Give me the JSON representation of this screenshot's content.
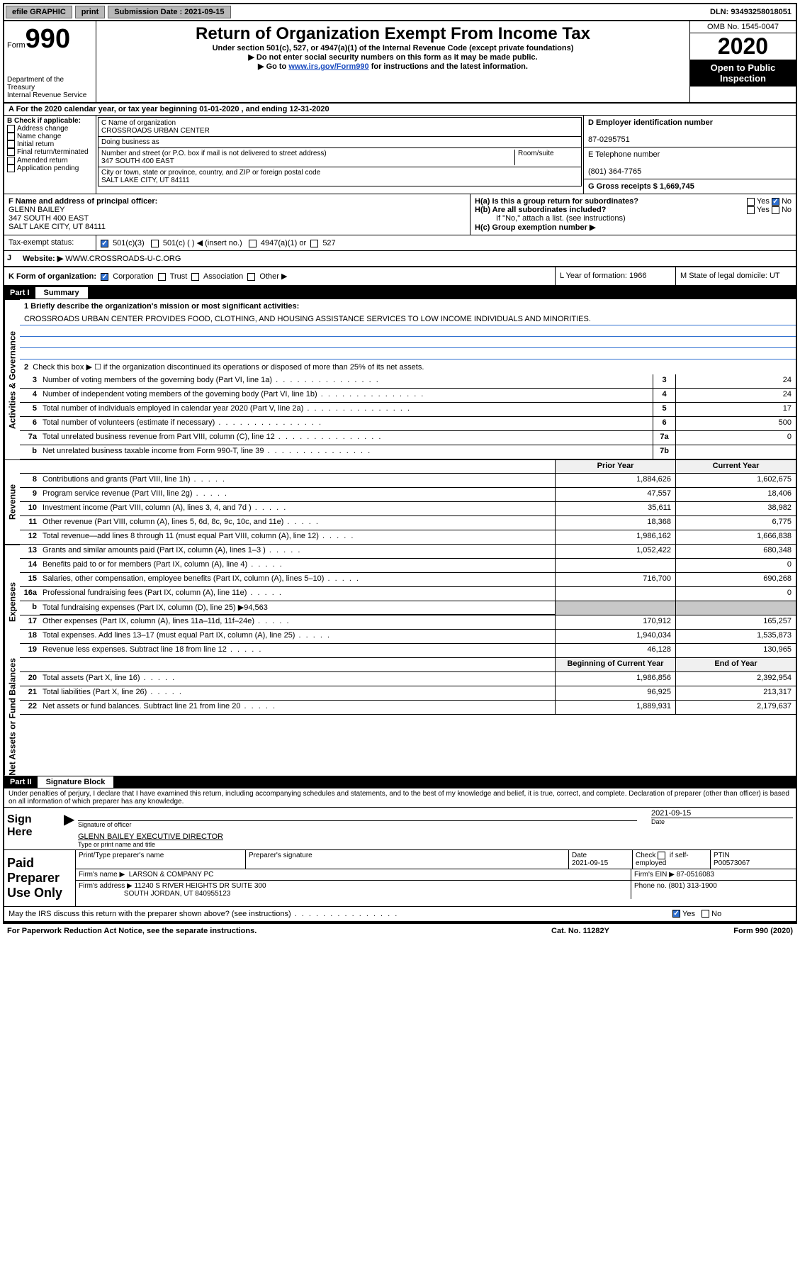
{
  "topbar": {
    "efile": "efile GRAPHIC",
    "print": "print",
    "sub_label": "Submission Date : 2021-09-15",
    "dln": "DLN: 93493258018051"
  },
  "header": {
    "form_word": "Form",
    "form_num": "990",
    "dept": "Department of the Treasury\nInternal Revenue Service",
    "title": "Return of Organization Exempt From Income Tax",
    "sub1": "Under section 501(c), 527, or 4947(a)(1) of the Internal Revenue Code (except private foundations)",
    "sub2": "▶ Do not enter social security numbers on this form as it may be made public.",
    "sub3_pre": "▶ Go to ",
    "sub3_link": "www.irs.gov/Form990",
    "sub3_post": " for instructions and the latest information.",
    "omb": "OMB No. 1545-0047",
    "year": "2020",
    "open": "Open to Public Inspection"
  },
  "line_a": "A For the 2020 calendar year, or tax year beginning 01-01-2020  , and ending 12-31-2020",
  "box_b": {
    "title": "B Check if applicable:",
    "opts": [
      "Address change",
      "Name change",
      "Initial return",
      "Final return/terminated",
      "Amended return",
      "Application pending"
    ]
  },
  "box_c": {
    "name_label": "C Name of organization",
    "name": "CROSSROADS URBAN CENTER",
    "dba_label": "Doing business as",
    "addr_label": "Number and street (or P.O. box if mail is not delivered to street address)",
    "room_label": "Room/suite",
    "addr": "347 SOUTH 400 EAST",
    "city_label": "City or town, state or province, country, and ZIP or foreign postal code",
    "city": "SALT LAKE CITY, UT  84111"
  },
  "box_d": {
    "label": "D Employer identification number",
    "val": "87-0295751"
  },
  "box_e": {
    "label": "E Telephone number",
    "val": "(801) 364-7765"
  },
  "box_g": {
    "label": "G Gross receipts $ 1,669,745"
  },
  "box_f": {
    "label": "F  Name and address of principal officer:",
    "name": "GLENN BAILEY",
    "addr1": "347 SOUTH 400 EAST",
    "addr2": "SALT LAKE CITY, UT  84111"
  },
  "box_h": {
    "a": "H(a)  Is this a group return for subordinates?",
    "b": "H(b)  Are all subordinates included?",
    "note": "If \"No,\" attach a list. (see instructions)",
    "c": "H(c)  Group exemption number ▶"
  },
  "box_i": {
    "label": "Tax-exempt status:",
    "o1": "501(c)(3)",
    "o2": "501(c) (  ) ◀ (insert no.)",
    "o3": "4947(a)(1) or",
    "o4": "527"
  },
  "box_j": {
    "label": "J",
    "text": "Website: ▶",
    "val": "WWW.CROSSROADS-U-C.ORG"
  },
  "box_k": {
    "label": "K Form of organization:",
    "o1": "Corporation",
    "o2": "Trust",
    "o3": "Association",
    "o4": "Other ▶"
  },
  "box_l": {
    "label": "L Year of formation: 1966"
  },
  "box_m": {
    "label": "M State of legal domicile: UT"
  },
  "part1": {
    "roman": "Part I",
    "label": "Summary",
    "mission_label": "1  Briefly describe the organization's mission or most significant activities:",
    "mission": "CROSSROADS URBAN CENTER PROVIDES FOOD, CLOTHING, AND HOUSING ASSISTANCE SERVICES TO LOW INCOME INDIVIDUALS AND MINORITIES.",
    "line2": "Check this box ▶ ☐  if the organization discontinued its operations or disposed of more than 25% of its net assets."
  },
  "tabs": {
    "gov": "Activities & Governance",
    "rev": "Revenue",
    "exp": "Expenses",
    "net": "Net Assets or Fund Balances"
  },
  "gov_rows": [
    {
      "n": "3",
      "d": "Number of voting members of the governing body (Part VI, line 1a)",
      "b": "3",
      "v": "24"
    },
    {
      "n": "4",
      "d": "Number of independent voting members of the governing body (Part VI, line 1b)",
      "b": "4",
      "v": "24"
    },
    {
      "n": "5",
      "d": "Total number of individuals employed in calendar year 2020 (Part V, line 2a)",
      "b": "5",
      "v": "17"
    },
    {
      "n": "6",
      "d": "Total number of volunteers (estimate if necessary)",
      "b": "6",
      "v": "500"
    },
    {
      "n": "7a",
      "d": "Total unrelated business revenue from Part VIII, column (C), line 12",
      "b": "7a",
      "v": "0"
    },
    {
      "n": "b",
      "d": "Net unrelated business taxable income from Form 990-T, line 39",
      "b": "7b",
      "v": ""
    }
  ],
  "colhdr": {
    "prior": "Prior Year",
    "current": "Current Year"
  },
  "rev_rows": [
    {
      "n": "8",
      "d": "Contributions and grants (Part VIII, line 1h)",
      "p": "1,884,626",
      "c": "1,602,675"
    },
    {
      "n": "9",
      "d": "Program service revenue (Part VIII, line 2g)",
      "p": "47,557",
      "c": "18,406"
    },
    {
      "n": "10",
      "d": "Investment income (Part VIII, column (A), lines 3, 4, and 7d )",
      "p": "35,611",
      "c": "38,982"
    },
    {
      "n": "11",
      "d": "Other revenue (Part VIII, column (A), lines 5, 6d, 8c, 9c, 10c, and 11e)",
      "p": "18,368",
      "c": "6,775"
    },
    {
      "n": "12",
      "d": "Total revenue—add lines 8 through 11 (must equal Part VIII, column (A), line 12)",
      "p": "1,986,162",
      "c": "1,666,838"
    }
  ],
  "exp_rows": [
    {
      "n": "13",
      "d": "Grants and similar amounts paid (Part IX, column (A), lines 1–3 )",
      "p": "1,052,422",
      "c": "680,348"
    },
    {
      "n": "14",
      "d": "Benefits paid to or for members (Part IX, column (A), line 4)",
      "p": "",
      "c": "0"
    },
    {
      "n": "15",
      "d": "Salaries, other compensation, employee benefits (Part IX, column (A), lines 5–10)",
      "p": "716,700",
      "c": "690,268"
    },
    {
      "n": "16a",
      "d": "Professional fundraising fees (Part IX, column (A), line 11e)",
      "p": "",
      "c": "0"
    }
  ],
  "exp_b": {
    "n": "b",
    "d": "Total fundraising expenses (Part IX, column (D), line 25) ▶94,563"
  },
  "exp_rows2": [
    {
      "n": "17",
      "d": "Other expenses (Part IX, column (A), lines 11a–11d, 11f–24e)",
      "p": "170,912",
      "c": "165,257"
    },
    {
      "n": "18",
      "d": "Total expenses. Add lines 13–17 (must equal Part IX, column (A), line 25)",
      "p": "1,940,034",
      "c": "1,535,873"
    },
    {
      "n": "19",
      "d": "Revenue less expenses. Subtract line 18 from line 12",
      "p": "46,128",
      "c": "130,965"
    }
  ],
  "net_hdr": {
    "beg": "Beginning of Current Year",
    "end": "End of Year"
  },
  "net_rows": [
    {
      "n": "20",
      "d": "Total assets (Part X, line 16)",
      "p": "1,986,856",
      "c": "2,392,954"
    },
    {
      "n": "21",
      "d": "Total liabilities (Part X, line 26)",
      "p": "96,925",
      "c": "213,317"
    },
    {
      "n": "22",
      "d": "Net assets or fund balances. Subtract line 21 from line 20",
      "p": "1,889,931",
      "c": "2,179,637"
    }
  ],
  "part2": {
    "roman": "Part II",
    "label": "Signature Block"
  },
  "penalty": "Under penalties of perjury, I declare that I have examined this return, including accompanying schedules and statements, and to the best of my knowledge and belief, it is true, correct, and complete. Declaration of preparer (other than officer) is based on all information of which preparer has any knowledge.",
  "sign": {
    "here": "Sign Here",
    "sig_of_officer": "Signature of officer",
    "date": "2021-09-15",
    "date_lbl": "Date",
    "name": "GLENN BAILEY EXECUTIVE DIRECTOR",
    "name_lbl": "Type or print name and title"
  },
  "prep": {
    "title": "Paid Preparer Use Only",
    "h1": "Print/Type preparer's name",
    "h2": "Preparer's signature",
    "h3": "Date",
    "date": "2021-09-15",
    "h4_pre": "Check",
    "h4_post": "if self-employed",
    "h5": "PTIN",
    "ptin": "P00573067",
    "firm_lbl": "Firm's name    ▶",
    "firm": "LARSON & COMPANY PC",
    "ein_lbl": "Firm's EIN ▶",
    "ein": "87-0516083",
    "addr_lbl": "Firm's address ▶",
    "addr1": "11240 S RIVER HEIGHTS DR SUITE 300",
    "addr2": "SOUTH JORDAN, UT  840955123",
    "phone_lbl": "Phone no.",
    "phone": "(801) 313-1900",
    "discuss": "May the IRS discuss this return with the preparer shown above? (see instructions)"
  },
  "footer": {
    "left": "For Paperwork Reduction Act Notice, see the separate instructions.",
    "mid": "Cat. No. 11282Y",
    "right": "Form 990 (2020)"
  },
  "yn": {
    "yes": "Yes",
    "no": "No"
  }
}
